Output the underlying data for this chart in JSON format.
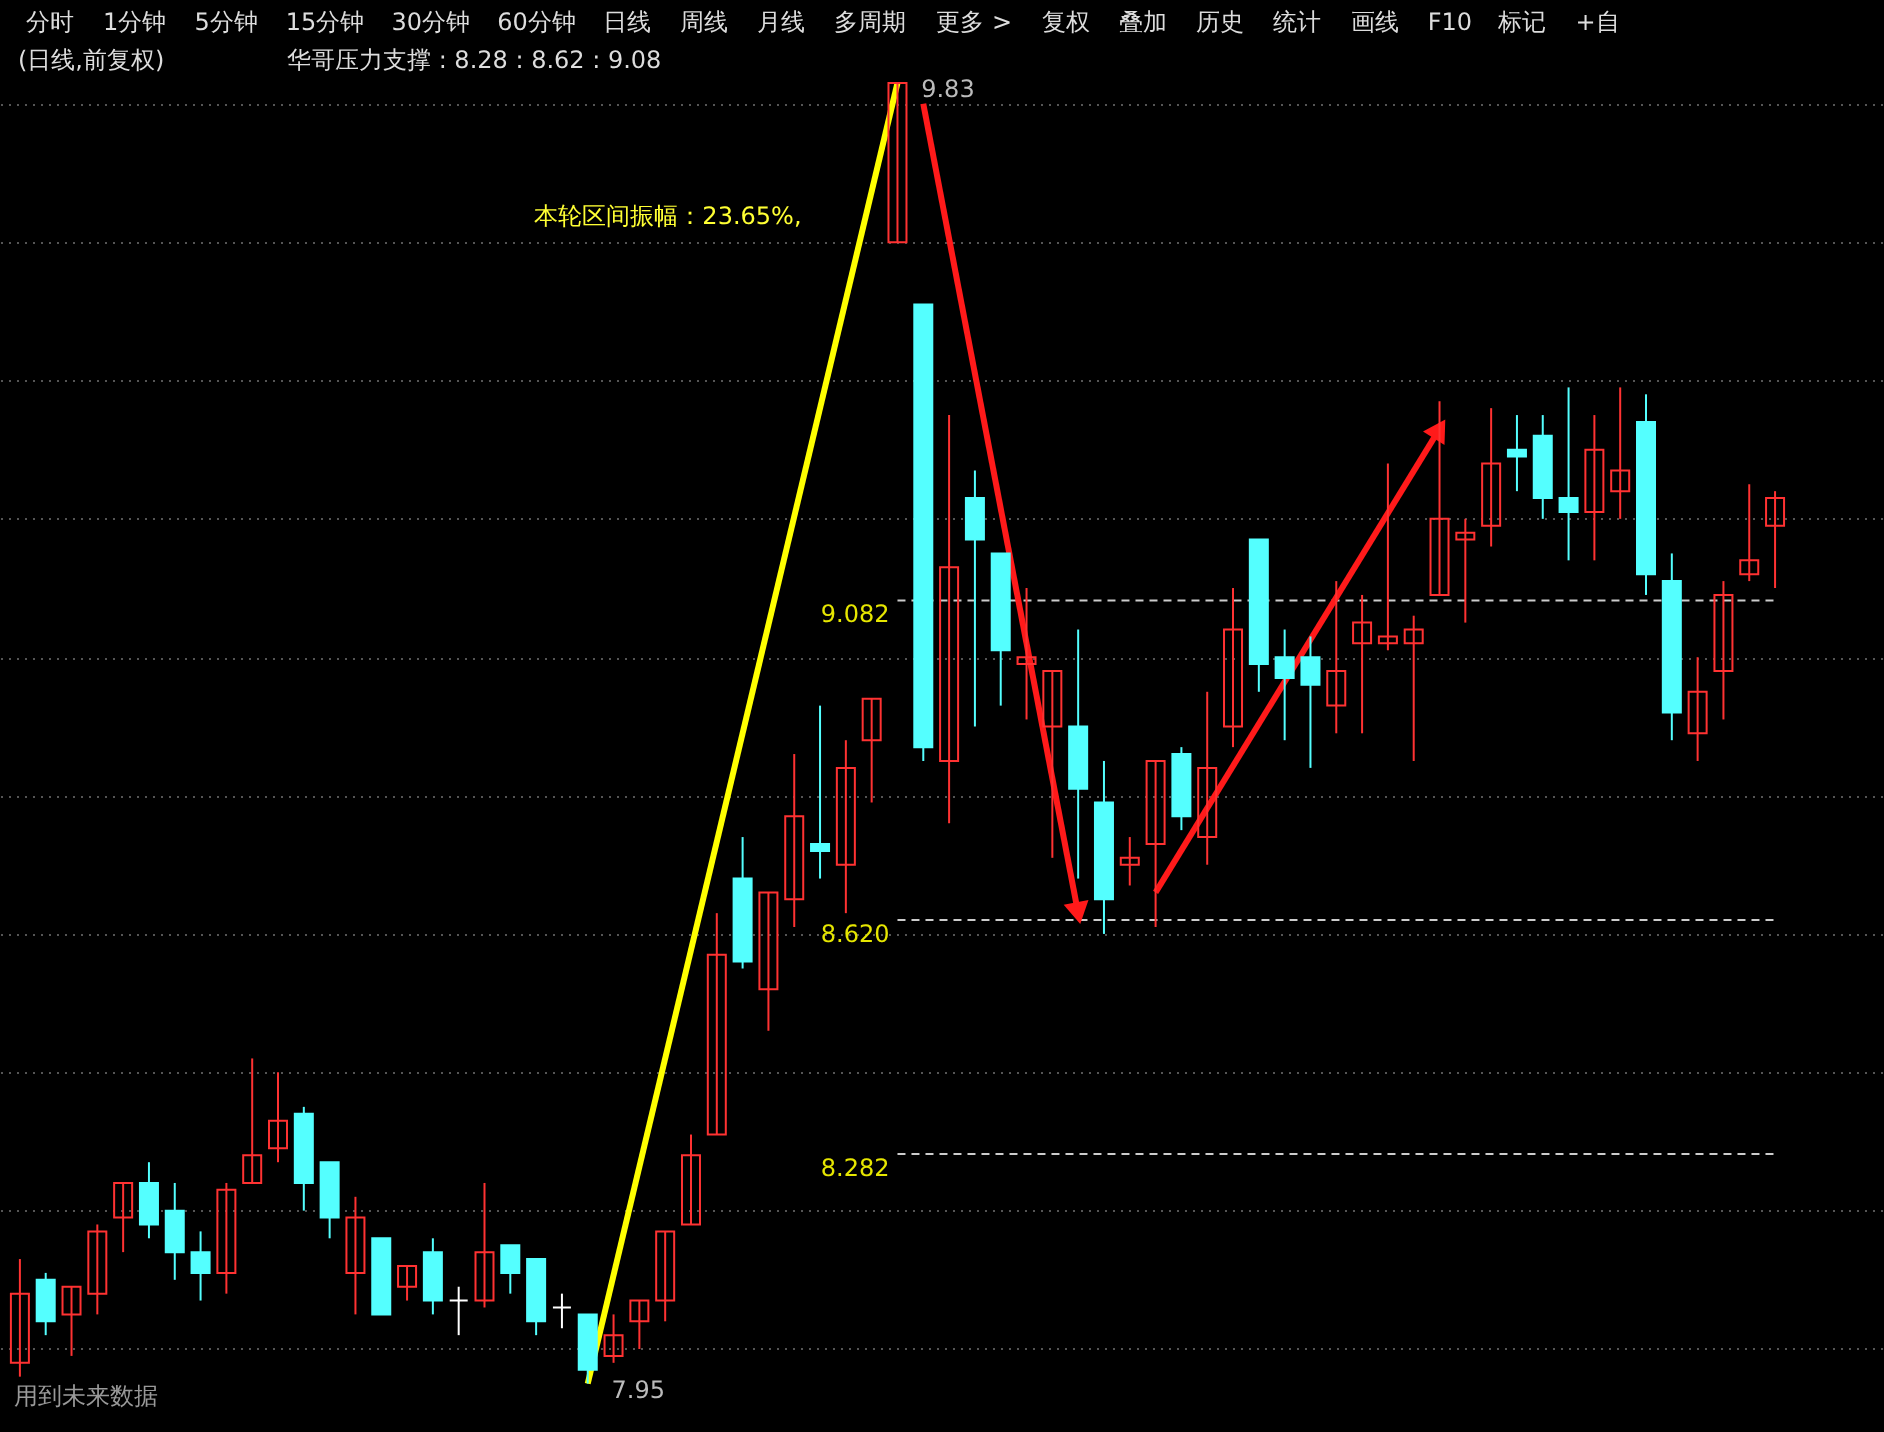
{
  "chart_data": {
    "type": "candlestick",
    "title": "(日线,前复权)",
    "subtitle": "华哥压力支撑    : 8.28 : 8.62 : 9.08",
    "categories": [
      null,
      null,
      null,
      null,
      null,
      null,
      null,
      null,
      null,
      null,
      null,
      null,
      null,
      null,
      null,
      null,
      null,
      null,
      null,
      null,
      null,
      null,
      null,
      null,
      null,
      null,
      null,
      null,
      null,
      null,
      null,
      null,
      null,
      null,
      null,
      null,
      null,
      null,
      null,
      null,
      null,
      null,
      null,
      null,
      null,
      null,
      null,
      null,
      null,
      null,
      null,
      null,
      null,
      null,
      null,
      null,
      null,
      null,
      null,
      null,
      null,
      null,
      null,
      null,
      null,
      null,
      null,
      null,
      null
    ],
    "ohlc": [
      [
        7.98,
        8.13,
        7.96,
        8.08
      ],
      [
        8.1,
        8.11,
        8.02,
        8.04
      ],
      [
        8.05,
        8.09,
        7.99,
        8.09
      ],
      [
        8.08,
        8.18,
        8.05,
        8.17
      ],
      [
        8.19,
        8.24,
        8.14,
        8.24
      ],
      [
        8.24,
        8.27,
        8.16,
        8.18
      ],
      [
        8.2,
        8.24,
        8.1,
        8.14
      ],
      [
        8.14,
        8.17,
        8.07,
        8.11
      ],
      [
        8.11,
        8.24,
        8.08,
        8.23
      ],
      [
        8.24,
        8.42,
        8.24,
        8.28
      ],
      [
        8.29,
        8.4,
        8.27,
        8.33
      ],
      [
        8.34,
        8.35,
        8.2,
        8.24
      ],
      [
        8.27,
        8.27,
        8.16,
        8.19
      ],
      [
        8.11,
        8.22,
        8.05,
        8.19
      ],
      [
        8.16,
        8.16,
        8.05,
        8.05
      ],
      [
        8.09,
        8.12,
        8.07,
        8.12
      ],
      [
        8.14,
        8.16,
        8.05,
        8.07
      ],
      [
        8.07,
        8.09,
        8.02,
        8.07
      ],
      [
        8.07,
        8.24,
        8.06,
        8.14
      ],
      [
        8.15,
        8.15,
        8.08,
        8.11
      ],
      [
        8.13,
        8.13,
        8.02,
        8.04
      ],
      [
        8.06,
        8.08,
        8.03,
        8.06
      ],
      [
        8.05,
        8.05,
        7.95,
        7.97
      ],
      [
        7.99,
        8.05,
        7.98,
        8.02
      ],
      [
        8.04,
        8.07,
        8.0,
        8.07
      ],
      [
        8.07,
        8.17,
        8.04,
        8.17
      ],
      [
        8.18,
        8.31,
        8.18,
        8.28
      ],
      [
        8.31,
        8.63,
        8.31,
        8.57
      ],
      [
        8.68,
        8.74,
        8.55,
        8.56
      ],
      [
        8.52,
        8.66,
        8.46,
        8.66
      ],
      [
        8.65,
        8.86,
        8.61,
        8.77
      ],
      [
        8.73,
        8.93,
        8.68,
        8.72
      ],
      [
        8.7,
        8.88,
        8.63,
        8.84
      ],
      [
        8.88,
        8.94,
        8.79,
        8.94
      ],
      [
        9.6,
        9.83,
        9.6,
        9.83
      ],
      [
        9.51,
        9.51,
        8.85,
        8.87
      ],
      [
        8.85,
        9.35,
        8.76,
        9.13
      ],
      [
        9.23,
        9.27,
        8.9,
        9.17
      ],
      [
        9.15,
        9.15,
        8.93,
        9.01
      ],
      [
        8.99,
        9.1,
        8.91,
        9.0
      ],
      [
        8.9,
        8.98,
        8.71,
        8.98
      ],
      [
        8.9,
        9.04,
        8.68,
        8.81
      ],
      [
        8.79,
        8.85,
        8.6,
        8.65
      ],
      [
        8.7,
        8.74,
        8.67,
        8.71
      ],
      [
        8.73,
        8.85,
        8.61,
        8.85
      ],
      [
        8.86,
        8.87,
        8.75,
        8.77
      ],
      [
        8.74,
        8.95,
        8.7,
        8.84
      ],
      [
        8.9,
        9.1,
        8.87,
        9.04
      ],
      [
        9.17,
        9.17,
        8.95,
        8.99
      ],
      [
        9.0,
        9.04,
        8.88,
        8.97
      ],
      [
        9.0,
        9.03,
        8.84,
        8.96
      ],
      [
        8.93,
        9.11,
        8.89,
        8.98
      ],
      [
        9.02,
        9.09,
        8.89,
        9.05
      ],
      [
        9.02,
        9.28,
        9.01,
        9.03
      ],
      [
        9.02,
        9.06,
        8.85,
        9.04
      ],
      [
        9.09,
        9.37,
        9.09,
        9.2
      ],
      [
        9.17,
        9.2,
        9.05,
        9.18
      ],
      [
        9.19,
        9.36,
        9.16,
        9.28
      ],
      [
        9.3,
        9.35,
        9.24,
        9.29
      ],
      [
        9.32,
        9.35,
        9.2,
        9.23
      ],
      [
        9.23,
        9.39,
        9.14,
        9.21
      ],
      [
        9.21,
        9.35,
        9.14,
        9.3
      ],
      [
        9.24,
        9.39,
        9.2,
        9.27
      ],
      [
        9.34,
        9.38,
        9.09,
        9.12
      ],
      [
        9.11,
        9.15,
        8.88,
        8.92
      ],
      [
        8.89,
        9.0,
        8.85,
        8.95
      ],
      [
        8.98,
        9.11,
        8.91,
        9.09
      ],
      [
        9.12,
        9.25,
        9.11,
        9.14
      ],
      [
        9.19,
        9.24,
        9.1,
        9.23
      ]
    ],
    "colors": [
      "#ff3232",
      "#54ffff",
      "#ff3232",
      "#ff3232",
      "#ff3232",
      "#54ffff",
      "#54ffff",
      "#54ffff",
      "#ff3232",
      "#ff3232",
      "#ff3232",
      "#54ffff",
      "#54ffff",
      "#ff3232",
      "#54ffff",
      "#ff3232",
      "#54ffff",
      "#ffffff",
      "#ff3232",
      "#54ffff",
      "#54ffff",
      "#ffffff",
      "#54ffff",
      "#ff3232",
      "#ff3232",
      "#ff3232",
      "#ff3232",
      "#ff3232",
      "#54ffff",
      "#ff3232",
      "#ff3232",
      "#54ffff",
      "#ff3232",
      "#ff3232",
      "#ff3232",
      "#54ffff",
      "#ff3232",
      "#54ffff",
      "#54ffff",
      "#ff3232",
      "#ff3232",
      "#54ffff",
      "#54ffff",
      "#ff3232",
      "#ff3232",
      "#54ffff",
      "#ff3232",
      "#ff3232",
      "#54ffff",
      "#54ffff",
      "#54ffff",
      "#ff3232",
      "#ff3232",
      "#ff3232",
      "#ff3232",
      "#ff3232",
      "#ff3232",
      "#ff3232",
      "#54ffff",
      "#54ffff",
      "#54ffff",
      "#ff3232",
      "#ff3232",
      "#54ffff",
      "#54ffff",
      "#ff3232",
      "#ff3232",
      "#ff3232",
      "#ff3232"
    ],
    "series": [
      {
        "type": "line",
        "color": "#ffff00",
        "values": [
          null,
          null,
          null,
          null,
          null,
          null,
          null,
          null,
          null,
          null,
          null,
          null,
          null,
          null,
          null,
          null,
          null,
          null,
          null,
          null,
          null,
          null,
          7.95,
          null,
          null,
          null,
          null,
          null,
          null,
          null,
          null,
          null,
          null,
          null,
          9.83,
          null,
          null,
          null,
          null,
          null,
          null,
          null,
          null,
          null,
          null,
          null,
          null,
          null,
          null,
          null,
          null,
          null,
          null,
          null,
          null,
          null,
          null,
          null,
          null,
          null,
          null,
          null,
          null,
          null,
          null,
          null,
          null,
          null,
          null
        ]
      },
      {
        "type": "line",
        "color": "#ff1a1a",
        "values": [
          null,
          null,
          null,
          null,
          null,
          null,
          null,
          null,
          null,
          null,
          null,
          null,
          null,
          null,
          null,
          null,
          null,
          null,
          null,
          null,
          null,
          null,
          null,
          null,
          null,
          null,
          null,
          null,
          null,
          null,
          null,
          null,
          null,
          null,
          null,
          9.8,
          null,
          null,
          null,
          null,
          null,
          8.63,
          null,
          null,
          null,
          null,
          null,
          null,
          null,
          null,
          null,
          null,
          null,
          null,
          null,
          null,
          null,
          null,
          null,
          null,
          null,
          null,
          null,
          null,
          null,
          null,
          null,
          null,
          null
        ],
        "marker": "triangle"
      },
      {
        "type": "line",
        "color": "#ff1a1a",
        "values": [
          null,
          null,
          null,
          null,
          null,
          null,
          null,
          null,
          null,
          null,
          null,
          null,
          null,
          null,
          null,
          null,
          null,
          null,
          null,
          null,
          null,
          null,
          null,
          null,
          null,
          null,
          null,
          null,
          null,
          null,
          null,
          null,
          null,
          null,
          null,
          null,
          null,
          null,
          null,
          null,
          null,
          null,
          null,
          null,
          8.66,
          null,
          null,
          null,
          null,
          null,
          null,
          null,
          null,
          null,
          null,
          9.33,
          null,
          null,
          null,
          null,
          null,
          null,
          null,
          null,
          null,
          null,
          null,
          null,
          null
        ],
        "marker": "triangle"
      }
    ],
    "ylim": [
      7.88,
      9.95
    ],
    "yticks": [
      {
        "value": 8.0,
        "label": null
      },
      {
        "value": 8.2,
        "label": null
      },
      {
        "value": 8.4,
        "label": null
      },
      {
        "value": 8.6,
        "label": null
      },
      {
        "value": 8.8,
        "label": null
      },
      {
        "value": 9.0,
        "label": null
      },
      {
        "value": 9.2,
        "label": null
      },
      {
        "value": 9.4,
        "label": null
      },
      {
        "value": 9.6,
        "label": null
      },
      {
        "value": 9.8,
        "label": null
      }
    ],
    "grid": "y",
    "tick_labels": false,
    "ref_lines": [
      {
        "axis": "y",
        "value": 9.082,
        "label": "9.082",
        "color": "#cccccc",
        "line_style": "dashed"
      },
      {
        "axis": "y",
        "value": 8.62,
        "label": "8.620",
        "color": "#cccccc",
        "line_style": "dashed"
      },
      {
        "axis": "y",
        "value": 8.282,
        "label": "8.282",
        "color": "#cccccc",
        "line_style": "dashed"
      }
    ],
    "annotations": [
      "分时",
      "1分钟",
      "5分钟",
      "15分钟",
      "30分钟",
      "60分钟",
      "日线",
      "周线",
      "月线",
      "多周期",
      "更多 >",
      "复权",
      "叠加",
      "历史",
      "统计",
      "画线",
      "F10",
      "标记",
      "+自",
      "用到未来数据",
      "9.83",
      "7.95",
      "本轮区间振幅：23.65%,"
    ]
  }
}
